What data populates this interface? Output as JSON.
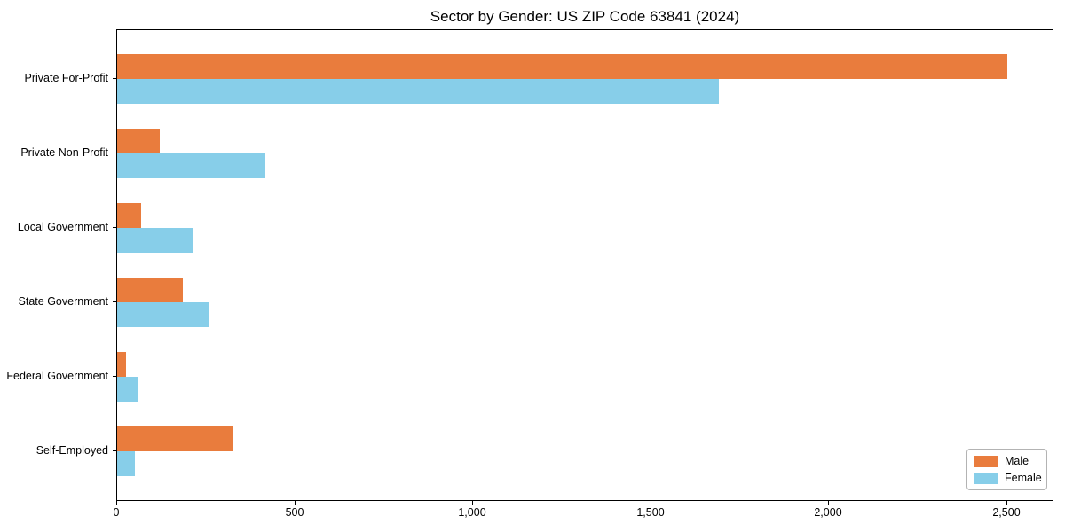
{
  "title": "Sector by Gender: US ZIP Code 63841 (2024)",
  "colors": {
    "male": "#e97c3d",
    "female": "#87cee9",
    "axis": "#000000",
    "legend_border": "#b3b3b3",
    "background": "#ffffff"
  },
  "legend": {
    "position": "lower right",
    "items": [
      {
        "label": "Male",
        "color": "#e97c3d"
      },
      {
        "label": "Female",
        "color": "#87cee9"
      }
    ]
  },
  "chart_data": {
    "type": "bar",
    "orientation": "horizontal",
    "title": "Sector by Gender: US ZIP Code 63841 (2024)",
    "xlabel": "",
    "ylabel": "",
    "grid": false,
    "legend_position": "lower right",
    "categories": [
      "Private For-Profit",
      "Private Non-Profit",
      "Local Government",
      "State Government",
      "Federal Government",
      "Self-Employed"
    ],
    "series": [
      {
        "name": "Male",
        "color": "#e97c3d",
        "values": [
          2500,
          120,
          68,
          185,
          25,
          325
        ]
      },
      {
        "name": "Female",
        "color": "#87cee9",
        "values": [
          1690,
          415,
          215,
          257,
          58,
          50
        ]
      }
    ],
    "xlim": [
      0,
      2632
    ],
    "x_ticks": {
      "values": [
        0,
        500,
        1000,
        1500,
        2000,
        2500
      ],
      "labels": [
        "0",
        "500",
        "1,000",
        "1,500",
        "2,000",
        "2,500"
      ]
    }
  }
}
